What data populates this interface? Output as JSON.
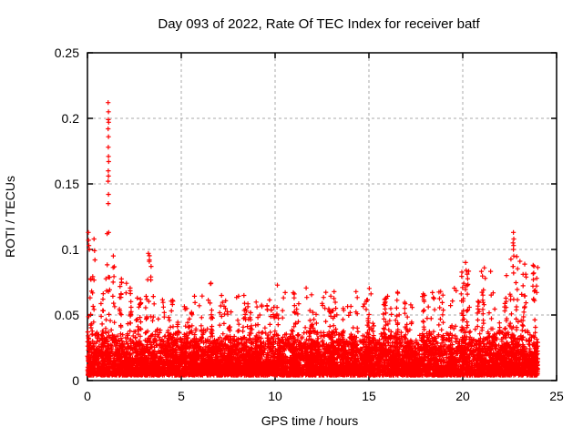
{
  "page": {
    "background": "#ffffff"
  },
  "chart_data": {
    "type": "scatter",
    "title": "Day 093 of 2022, Rate Of TEC Index for receiver batf",
    "xlabel": "GPS time / hours",
    "ylabel": "ROTI / TECUs",
    "xlim": [
      0,
      25
    ],
    "ylim": [
      0,
      0.25
    ],
    "xticks": [
      0,
      5,
      10,
      15,
      20,
      25
    ],
    "xtick_labels": [
      "0",
      "5",
      "10",
      "15",
      "20",
      "25"
    ],
    "yticks": [
      0,
      0.05,
      0.1,
      0.15,
      0.2,
      0.25
    ],
    "ytick_labels": [
      "0",
      "0.05",
      "0.1",
      "0.15",
      "0.2",
      "0.25"
    ],
    "grid": {
      "visible": true,
      "color": "#aaaaaa",
      "dash": "3,3"
    },
    "legend": {
      "visible": false
    },
    "marker": {
      "symbol": "+",
      "color": "#ff0000",
      "size": 5
    },
    "series_name": "ROTI",
    "data_x_range": [
      0,
      24
    ],
    "band": {
      "description": "dense noise band of + markers; solid core near bottom, spiky columns reaching per-bin envelope",
      "core_min": 0.004,
      "core_max": 0.032,
      "bin_width_hours": 0.5,
      "points_per_bin": 170,
      "seed": 93,
      "envelope": [
        0.09,
        0.075,
        0.1,
        0.088,
        0.075,
        0.065,
        0.097,
        0.068,
        0.062,
        0.055,
        0.06,
        0.065,
        0.068,
        0.075,
        0.065,
        0.058,
        0.065,
        0.06,
        0.06,
        0.065,
        0.075,
        0.07,
        0.07,
        0.072,
        0.065,
        0.07,
        0.068,
        0.06,
        0.068,
        0.062,
        0.075,
        0.065,
        0.073,
        0.062,
        0.06,
        0.068,
        0.07,
        0.068,
        0.062,
        0.072,
        0.085,
        0.062,
        0.085,
        0.072,
        0.082,
        0.095,
        0.09,
        0.088
      ]
    },
    "outliers": [
      [
        0.05,
        0.113
      ],
      [
        0.06,
        0.107
      ],
      [
        0.08,
        0.103
      ],
      [
        0.1,
        0.1
      ],
      [
        0.35,
        0.108
      ],
      [
        0.38,
        0.099
      ],
      [
        0.4,
        0.092
      ],
      [
        1.1,
        0.212
      ],
      [
        1.12,
        0.205
      ],
      [
        1.11,
        0.199
      ],
      [
        1.13,
        0.197
      ],
      [
        1.1,
        0.192
      ],
      [
        1.12,
        0.186
      ],
      [
        1.11,
        0.178
      ],
      [
        1.12,
        0.171
      ],
      [
        1.13,
        0.167
      ],
      [
        1.11,
        0.16
      ],
      [
        1.12,
        0.156
      ],
      [
        1.1,
        0.152
      ],
      [
        1.12,
        0.142
      ],
      [
        1.11,
        0.135
      ],
      [
        1.13,
        0.113
      ],
      [
        1.05,
        0.112
      ],
      [
        3.25,
        0.097
      ],
      [
        3.3,
        0.092
      ],
      [
        20.15,
        0.09
      ],
      [
        20.18,
        0.084
      ],
      [
        21.15,
        0.086
      ],
      [
        21.2,
        0.078
      ],
      [
        22.7,
        0.113
      ],
      [
        22.72,
        0.108
      ],
      [
        22.68,
        0.105
      ],
      [
        22.71,
        0.103
      ],
      [
        22.7,
        0.1
      ],
      [
        22.72,
        0.095
      ],
      [
        22.69,
        0.087
      ],
      [
        22.71,
        0.082
      ],
      [
        23.05,
        0.091
      ],
      [
        23.75,
        0.088
      ],
      [
        23.78,
        0.082
      ],
      [
        23.76,
        0.077
      ],
      [
        23.74,
        0.072
      ]
    ]
  }
}
